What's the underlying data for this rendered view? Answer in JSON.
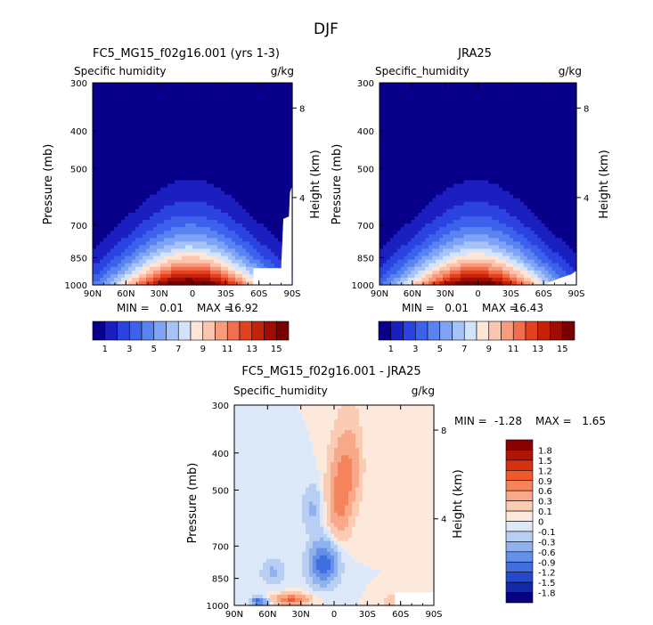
{
  "figure": {
    "title": "DJF"
  },
  "chart_data": [
    {
      "type": "heatmap",
      "title": "FC5_MG15_f02g16.001 (yrs 1-3)",
      "subtitle_left": "Specific humidity",
      "subtitle_right": "g/kg",
      "ylabel": "Pressure (mb)",
      "ylabel_right": "Height (km)",
      "x_ticks": [
        "90N",
        "60N",
        "30N",
        "0",
        "30S",
        "60S",
        "90S"
      ],
      "y_ticks": [
        "300",
        "400",
        "500",
        "700",
        "850",
        "1000"
      ],
      "y_right_ticks": [
        "8",
        "4"
      ],
      "x_range": [
        90,
        -90
      ],
      "y_range": [
        1000,
        300
      ],
      "stats": {
        "min_label": "MIN =",
        "min": "0.01",
        "max_label": "MAX =",
        "max": "16.92"
      },
      "peak": {
        "lat": 2,
        "value": 16.92
      },
      "colorbar": {
        "orientation": "horizontal",
        "labels": [
          "1",
          "3",
          "5",
          "7",
          "9",
          "11",
          "13",
          "15"
        ],
        "colors": [
          "#08008a",
          "#1c1fc0",
          "#2b43e0",
          "#3c62ec",
          "#5a83f2",
          "#7fa3f5",
          "#a6c3f7",
          "#d2e4fb",
          "#fde6d8",
          "#fbc5ae",
          "#f79d7e",
          "#f26e4c",
          "#e2421f",
          "#c62208",
          "#a00b02",
          "#7a0000"
        ]
      }
    },
    {
      "type": "heatmap",
      "title": "JRA25",
      "subtitle_left": "Specific_humidity",
      "subtitle_right": "g/kg",
      "ylabel": "Pressure (mb)",
      "ylabel_right": "Height (km)",
      "x_ticks": [
        "90N",
        "60N",
        "30N",
        "0",
        "30S",
        "60S",
        "90S"
      ],
      "y_ticks": [
        "300",
        "400",
        "500",
        "700",
        "850",
        "1000"
      ],
      "y_right_ticks": [
        "8",
        "4"
      ],
      "x_range": [
        90,
        -90
      ],
      "y_range": [
        1000,
        300
      ],
      "stats": {
        "min_label": "MIN =",
        "min": "0.01",
        "max_label": "MAX =",
        "max": "16.43"
      },
      "peak": {
        "lat": 2,
        "value": 16.43
      },
      "colorbar": {
        "orientation": "horizontal",
        "labels": [
          "1",
          "3",
          "5",
          "7",
          "9",
          "11",
          "13",
          "15"
        ],
        "colors": [
          "#08008a",
          "#1c1fc0",
          "#2b43e0",
          "#3c62ec",
          "#5a83f2",
          "#7fa3f5",
          "#a6c3f7",
          "#d2e4fb",
          "#fde6d8",
          "#fbc5ae",
          "#f79d7e",
          "#f26e4c",
          "#e2421f",
          "#c62208",
          "#a00b02",
          "#7a0000"
        ]
      }
    },
    {
      "type": "heatmap",
      "title": "FC5_MG15_f02g16.001 - JRA25",
      "subtitle_left": "Specific_humidity",
      "subtitle_right": "g/kg",
      "ylabel": "Pressure (mb)",
      "ylabel_right": "Height (km)",
      "x_ticks": [
        "90N",
        "60N",
        "30N",
        "0",
        "30S",
        "60S",
        "90S"
      ],
      "y_ticks": [
        "300",
        "400",
        "500",
        "700",
        "850",
        "1000"
      ],
      "y_right_ticks": [
        "8",
        "4"
      ],
      "x_range": [
        90,
        -90
      ],
      "y_range": [
        1000,
        300
      ],
      "stats": {
        "min_label": "MIN =",
        "min": "-1.28",
        "max_label": "MAX =",
        "max": "1.65"
      },
      "colorbar": {
        "orientation": "vertical",
        "labels": [
          "1.8",
          "1.5",
          "1.2",
          "0.9",
          "0.6",
          "0.3",
          "0.1",
          "0",
          "-0.1",
          "-0.3",
          "-0.6",
          "-0.9",
          "-1.2",
          "-1.5",
          "-1.8"
        ],
        "colors": [
          "#8a0000",
          "#b01405",
          "#d53210",
          "#ee5a2c",
          "#f5845c",
          "#f8a989",
          "#fbccb4",
          "#fde9dc",
          "#dde9f8",
          "#b8cff3",
          "#8fb1ee",
          "#6590e8",
          "#3f6ee0",
          "#2549cc",
          "#1428a8",
          "#06007e"
        ]
      }
    }
  ]
}
